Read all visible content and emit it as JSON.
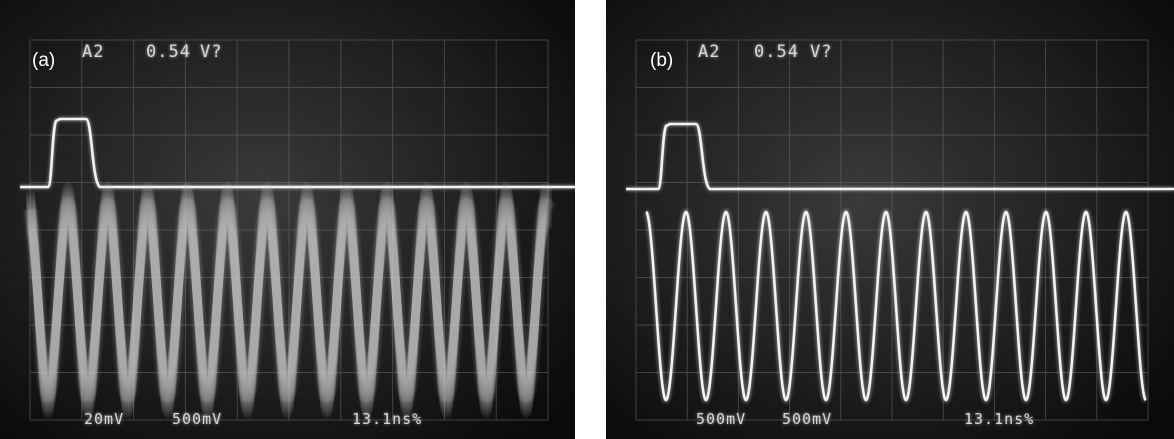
{
  "panels": [
    {
      "label": "(a)",
      "channel": "A2",
      "reading": "0.54",
      "reading_unit": "V?",
      "ch1_scale": "20mV",
      "ch2_scale": "500mV",
      "timebase": "13.1ns%"
    },
    {
      "label": "(b)",
      "channel": "A2",
      "reading": "0.54",
      "reading_unit": "V?",
      "ch1_scale": "500mV",
      "ch2_scale": "500mV",
      "timebase": "13.1ns%"
    }
  ],
  "colors": {
    "screen": "#0b0b0b",
    "trace": "#f2f2f2",
    "grid": "#6a6a6a"
  }
}
